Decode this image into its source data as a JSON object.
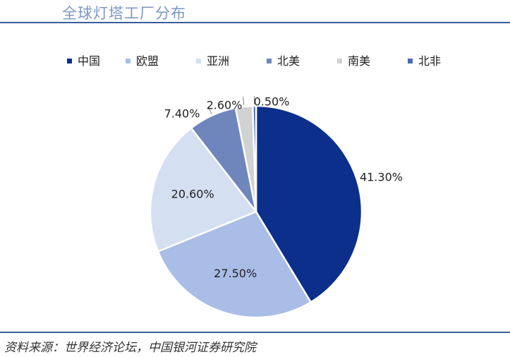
{
  "header": {
    "title": "全球灯塔工厂分布"
  },
  "footer": {
    "source": "资料来源：世界经济论坛，中国银河证券研究院"
  },
  "chart_data": {
    "type": "pie",
    "title": "全球灯塔工厂分布",
    "legend_position": "top",
    "categories": [
      "中国",
      "欧盟",
      "亚洲",
      "北美",
      "南美",
      "北非"
    ],
    "values": [
      41.3,
      27.5,
      20.6,
      7.4,
      2.6,
      0.5
    ],
    "labels": [
      "41.30%",
      "27.50%",
      "20.60%",
      "7.40%",
      "2.60%",
      "0.50%"
    ],
    "colors": [
      "#0b2f8a",
      "#a9bde6",
      "#d4dff2",
      "#6e86bb",
      "#d2d2d2",
      "#4a6ab0"
    ]
  }
}
